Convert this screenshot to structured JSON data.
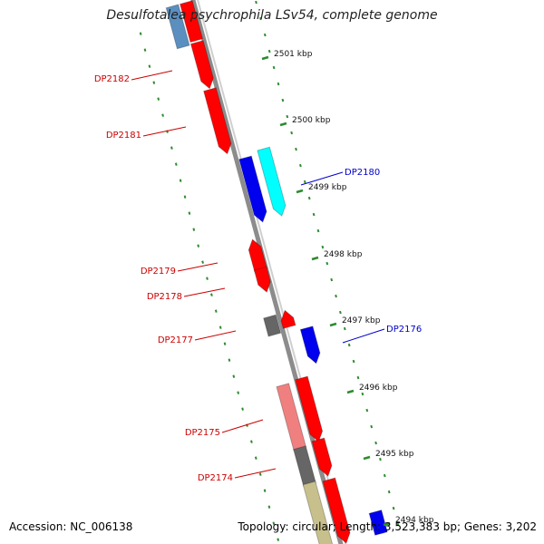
{
  "title": "Desulfotalea psychrophila LSv54, complete genome",
  "accession": "Accession: NC_006138",
  "summary": "Topology: circular; Length: 3,523,383 bp; Genes: 3,202",
  "colors": {
    "backbone": "#8c8c8c",
    "tick": "#2e8b2e",
    "red": "#ff0000",
    "blue": "#0000ee",
    "cyan": "#00ffff",
    "pink": "#f08080",
    "gray": "#666666",
    "olive": "#c8c08c",
    "steel": "#5b8fc0",
    "label_red": "#cc0000",
    "label_blue": "#0000cc"
  },
  "kbp_ticks": [
    "2501 kbp",
    "2500 kbp",
    "2499 kbp",
    "2498 kbp",
    "2497 kbp",
    "2496 kbp",
    "2495 kbp",
    "2494 kbp"
  ],
  "gene_labels": [
    {
      "name": "DP2182",
      "color": "red"
    },
    {
      "name": "DP2181",
      "color": "red"
    },
    {
      "name": "DP2180",
      "color": "blue"
    },
    {
      "name": "DP2179",
      "color": "red"
    },
    {
      "name": "DP2178",
      "color": "red"
    },
    {
      "name": "DP2177",
      "color": "red"
    },
    {
      "name": "DP2176",
      "color": "blue"
    },
    {
      "name": "DP2175",
      "color": "red"
    },
    {
      "name": "DP2174",
      "color": "red"
    }
  ]
}
